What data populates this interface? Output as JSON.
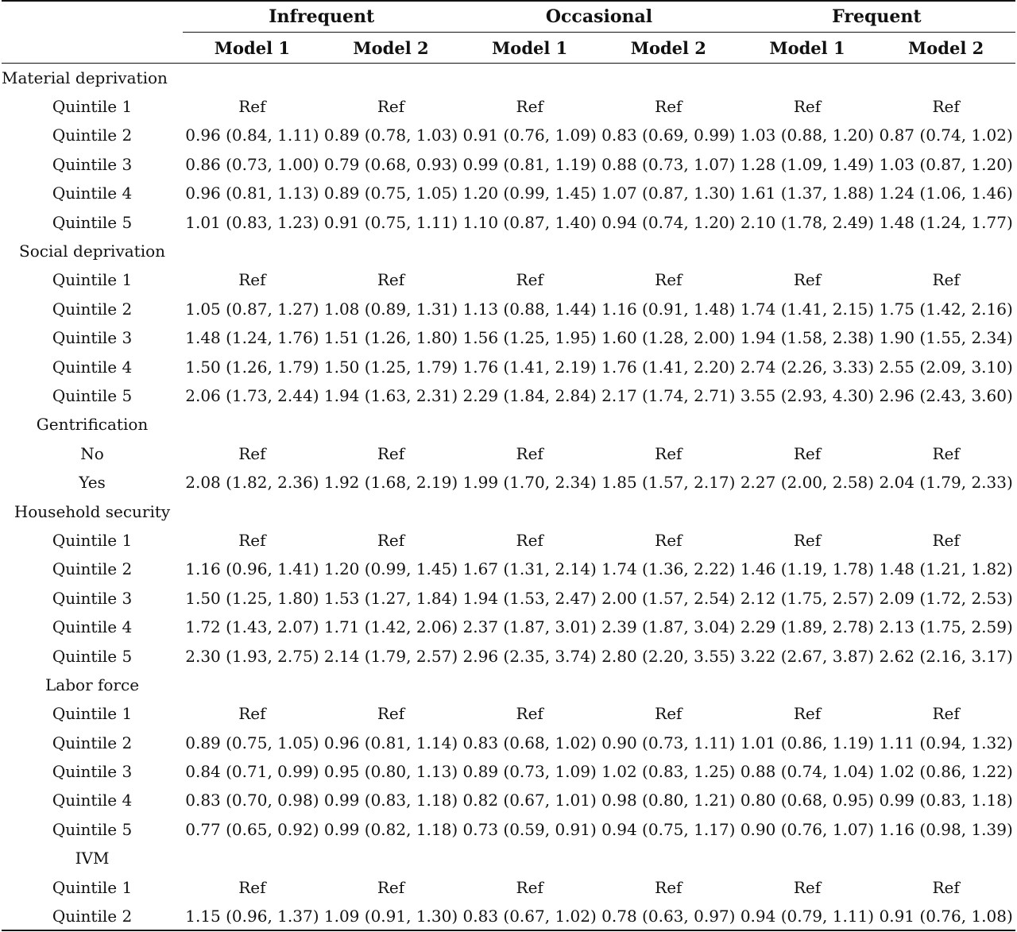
{
  "groups": [
    "Infrequent",
    "Occasional",
    "Frequent"
  ],
  "models": [
    "Model 1",
    "Model 2",
    "Model 1",
    "Model 2",
    "Model 1",
    "Model 2"
  ],
  "sections": [
    {
      "label": "Material deprivation",
      "rows": [
        {
          "label": "Quintile 1",
          "values": [
            "Ref",
            "Ref",
            "Ref",
            "Ref",
            "Ref",
            "Ref"
          ]
        },
        {
          "label": "Quintile 2",
          "values": [
            "0.96 (0.84, 1.11)",
            "0.89 (0.78, 1.03)",
            "0.91 (0.76, 1.09)",
            "0.83 (0.69, 0.99)",
            "1.03 (0.88, 1.20)",
            "0.87 (0.74, 1.02)"
          ]
        },
        {
          "label": "Quintile 3",
          "values": [
            "0.86 (0.73, 1.00)",
            "0.79 (0.68, 0.93)",
            "0.99 (0.81, 1.19)",
            "0.88 (0.73, 1.07)",
            "1.28 (1.09, 1.49)",
            "1.03 (0.87, 1.20)"
          ]
        },
        {
          "label": "Quintile 4",
          "values": [
            "0.96 (0.81, 1.13)",
            "0.89 (0.75, 1.05)",
            "1.20 (0.99, 1.45)",
            "1.07 (0.87, 1.30)",
            "1.61 (1.37, 1.88)",
            "1.24 (1.06, 1.46)"
          ]
        },
        {
          "label": "Quintile 5",
          "values": [
            "1.01 (0.83, 1.23)",
            "0.91 (0.75, 1.11)",
            "1.10 (0.87, 1.40)",
            "0.94 (0.74, 1.20)",
            "2.10 (1.78, 2.49)",
            "1.48 (1.24, 1.77)"
          ]
        }
      ]
    },
    {
      "label": "Social deprivation",
      "rows": [
        {
          "label": "Quintile 1",
          "values": [
            "Ref",
            "Ref",
            "Ref",
            "Ref",
            "Ref",
            "Ref"
          ]
        },
        {
          "label": "Quintile 2",
          "values": [
            "1.05 (0.87, 1.27)",
            "1.08 (0.89, 1.31)",
            "1.13 (0.88, 1.44)",
            "1.16 (0.91, 1.48)",
            "1.74 (1.41, 2.15)",
            "1.75 (1.42, 2.16)"
          ]
        },
        {
          "label": "Quintile 3",
          "values": [
            "1.48 (1.24, 1.76)",
            "1.51 (1.26, 1.80)",
            "1.56 (1.25, 1.95)",
            "1.60 (1.28, 2.00)",
            "1.94 (1.58, 2.38)",
            "1.90 (1.55, 2.34)"
          ]
        },
        {
          "label": "Quintile 4",
          "values": [
            "1.50 (1.26, 1.79)",
            "1.50 (1.25, 1.79)",
            "1.76 (1.41, 2.19)",
            "1.76 (1.41, 2.20)",
            "2.74 (2.26, 3.33)",
            "2.55 (2.09, 3.10)"
          ]
        },
        {
          "label": "Quintile 5",
          "values": [
            "2.06 (1.73, 2.44)",
            "1.94 (1.63, 2.31)",
            "2.29 (1.84, 2.84)",
            "2.17 (1.74, 2.71)",
            "3.55 (2.93, 4.30)",
            "2.96 (2.43, 3.60)"
          ]
        }
      ]
    },
    {
      "label": "Gentrification",
      "rows": [
        {
          "label": "No",
          "values": [
            "Ref",
            "Ref",
            "Ref",
            "Ref",
            "Ref",
            "Ref"
          ]
        },
        {
          "label": "Yes",
          "values": [
            "2.08 (1.82, 2.36)",
            "1.92 (1.68, 2.19)",
            "1.99 (1.70, 2.34)",
            "1.85 (1.57, 2.17)",
            "2.27 (2.00, 2.58)",
            "2.04 (1.79, 2.33)"
          ]
        }
      ]
    },
    {
      "label": "Household security",
      "rows": [
        {
          "label": "Quintile 1",
          "values": [
            "Ref",
            "Ref",
            "Ref",
            "Ref",
            "Ref",
            "Ref"
          ]
        },
        {
          "label": "Quintile 2",
          "values": [
            "1.16 (0.96, 1.41)",
            "1.20 (0.99, 1.45)",
            "1.67 (1.31, 2.14)",
            "1.74 (1.36, 2.22)",
            "1.46 (1.19, 1.78)",
            "1.48 (1.21, 1.82)"
          ]
        },
        {
          "label": "Quintile 3",
          "values": [
            "1.50 (1.25, 1.80)",
            "1.53 (1.27, 1.84)",
            "1.94 (1.53, 2.47)",
            "2.00 (1.57, 2.54)",
            "2.12 (1.75, 2.57)",
            "2.09 (1.72, 2.53)"
          ]
        },
        {
          "label": "Quintile 4",
          "values": [
            "1.72 (1.43, 2.07)",
            "1.71 (1.42, 2.06)",
            "2.37 (1.87, 3.01)",
            "2.39 (1.87, 3.04)",
            "2.29 (1.89, 2.78)",
            "2.13 (1.75, 2.59)"
          ]
        },
        {
          "label": "Quintile 5",
          "values": [
            "2.30 (1.93, 2.75)",
            "2.14 (1.79, 2.57)",
            "2.96 (2.35, 3.74)",
            "2.80 (2.20, 3.55)",
            "3.22 (2.67, 3.87)",
            "2.62 (2.16, 3.17)"
          ]
        }
      ]
    },
    {
      "label": "Labor force",
      "rows": [
        {
          "label": "Quintile 1",
          "values": [
            "Ref",
            "Ref",
            "Ref",
            "Ref",
            "Ref",
            "Ref"
          ]
        },
        {
          "label": "Quintile 2",
          "values": [
            "0.89 (0.75, 1.05)",
            "0.96 (0.81, 1.14)",
            "0.83 (0.68, 1.02)",
            "0.90 (0.73, 1.11)",
            "1.01 (0.86, 1.19)",
            "1.11 (0.94, 1.32)"
          ]
        },
        {
          "label": "Quintile 3",
          "values": [
            "0.84 (0.71, 0.99)",
            "0.95 (0.80, 1.13)",
            "0.89 (0.73, 1.09)",
            "1.02 (0.83, 1.25)",
            "0.88 (0.74, 1.04)",
            "1.02 (0.86, 1.22)"
          ]
        },
        {
          "label": "Quintile 4",
          "values": [
            "0.83 (0.70, 0.98)",
            "0.99 (0.83, 1.18)",
            "0.82 (0.67, 1.01)",
            "0.98 (0.80, 1.21)",
            "0.80 (0.68, 0.95)",
            "0.99 (0.83, 1.18)"
          ]
        },
        {
          "label": "Quintile 5",
          "values": [
            "0.77 (0.65, 0.92)",
            "0.99 (0.82, 1.18)",
            "0.73 (0.59, 0.91)",
            "0.94 (0.75, 1.17)",
            "0.90 (0.76, 1.07)",
            "1.16 (0.98, 1.39)"
          ]
        }
      ]
    },
    {
      "label": "IVM",
      "rows": [
        {
          "label": "Quintile 1",
          "values": [
            "Ref",
            "Ref",
            "Ref",
            "Ref",
            "Ref",
            "Ref"
          ]
        },
        {
          "label": "Quintile 2",
          "values": [
            "1.15 (0.96, 1.37)",
            "1.09 (0.91, 1.30)",
            "0.83 (0.67, 1.02)",
            "0.78 (0.63, 0.97)",
            "0.94 (0.79, 1.11)",
            "0.91 (0.76, 1.08)"
          ]
        }
      ]
    }
  ]
}
